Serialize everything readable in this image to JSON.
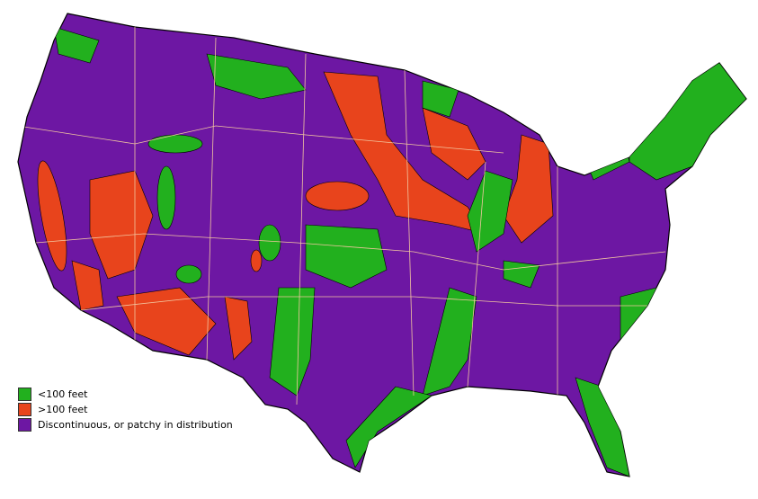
{
  "legend": {
    "items": [
      {
        "label": "<100 feet",
        "color": "#22b01e"
      },
      {
        "label": ">100 feet",
        "color": "#e8441c"
      },
      {
        "label": "Discontinuous, or patchy in distribution",
        "color": "#6d17a3"
      }
    ]
  }
}
